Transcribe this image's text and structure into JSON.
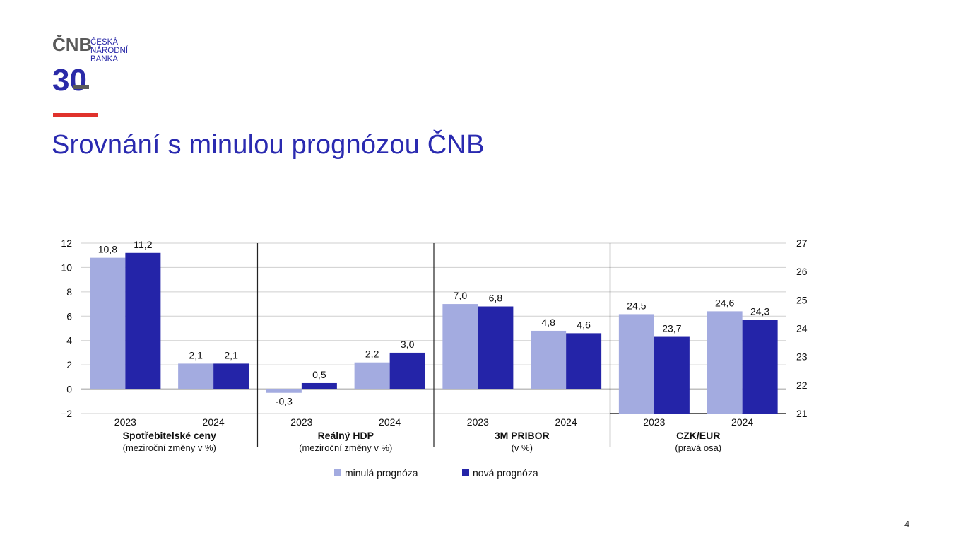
{
  "header": {
    "logo_mark": "ČNB",
    "logo_number": "30",
    "logo_lines": [
      "ČESKÁ",
      "NÁRODNÍ",
      "BANKA"
    ],
    "title": "Srovnání s minulou prognózou ČNB"
  },
  "page_number": "4",
  "colors": {
    "accent": "#e0322c",
    "title": "#2a2ab0",
    "previous": "#a3abe0",
    "new": "#2424a8"
  },
  "chart_data": {
    "type": "bar",
    "left_axis": {
      "ticks": [
        "12",
        "10",
        "8",
        "6",
        "4",
        "2",
        "0",
        "−2"
      ],
      "range": [
        -2,
        12
      ]
    },
    "right_axis": {
      "ticks": [
        "27",
        "26",
        "25",
        "24",
        "23",
        "22",
        "21"
      ],
      "range": [
        21,
        27
      ]
    },
    "series": [
      {
        "name": "minulá prognóza",
        "color": "#a3abe0"
      },
      {
        "name": "nová prognóza",
        "color": "#2424a8"
      }
    ],
    "groups": [
      {
        "title": "Spotřebitelské ceny",
        "subtitle": "(meziroční změny v %)",
        "axis": "left",
        "categories": [
          "2023",
          "2024"
        ],
        "values": [
          [
            10.8,
            11.2
          ],
          [
            2.1,
            2.1
          ]
        ],
        "labels": [
          [
            "10,8",
            "11,2"
          ],
          [
            "2,1",
            "2,1"
          ]
        ]
      },
      {
        "title": "Reálný HDP",
        "subtitle": "(meziroční změny v %)",
        "axis": "left",
        "categories": [
          "2023",
          "2024"
        ],
        "values": [
          [
            -0.3,
            0.5
          ],
          [
            2.2,
            3.0
          ]
        ],
        "labels": [
          [
            "-0,3",
            "0,5"
          ],
          [
            "2,2",
            "3,0"
          ]
        ]
      },
      {
        "title": "3M PRIBOR",
        "subtitle": "(v %)",
        "axis": "left",
        "categories": [
          "2023",
          "2024"
        ],
        "values": [
          [
            7.0,
            6.8
          ],
          [
            4.8,
            4.6
          ]
        ],
        "labels": [
          [
            "7,0",
            "6,8"
          ],
          [
            "4,8",
            "4,6"
          ]
        ]
      },
      {
        "title": "CZK/EUR",
        "subtitle": "(pravá osa)",
        "axis": "right",
        "categories": [
          "2023",
          "2024"
        ],
        "values": [
          [
            24.5,
            23.7
          ],
          [
            24.6,
            24.3
          ]
        ],
        "labels": [
          [
            "24,5",
            "23,7"
          ],
          [
            "24,6",
            "24,3"
          ]
        ]
      }
    ],
    "grid": true,
    "legend": "bottom-center"
  }
}
